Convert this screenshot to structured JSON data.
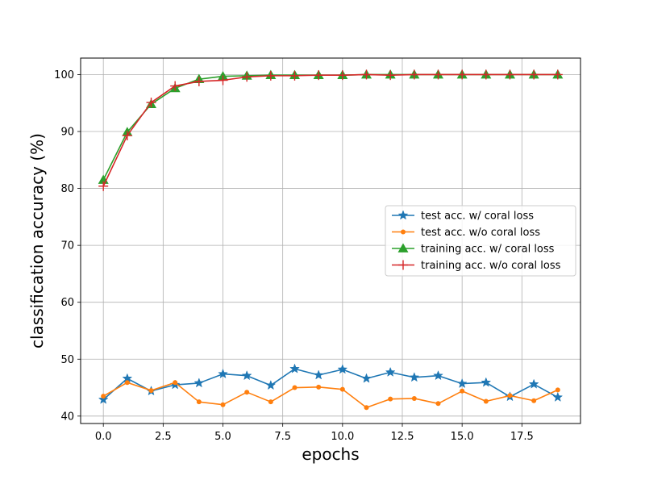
{
  "chart_data": {
    "type": "line",
    "xlabel": "epochs",
    "ylabel": "classification accuracy (%)",
    "xlim": [
      -0.95,
      19.95
    ],
    "ylim": [
      38.7,
      102.9
    ],
    "xticks": [
      0.0,
      2.5,
      5.0,
      7.5,
      10.0,
      12.5,
      15.0,
      17.5
    ],
    "xtick_labels": [
      "0.0",
      "2.5",
      "5.0",
      "7.5",
      "10.0",
      "12.5",
      "15.0",
      "17.5"
    ],
    "yticks": [
      40,
      50,
      60,
      70,
      80,
      90,
      100
    ],
    "ytick_labels": [
      "40",
      "50",
      "60",
      "70",
      "80",
      "90",
      "100"
    ],
    "grid": true,
    "legend_position": "center-right",
    "x": [
      0,
      1,
      2,
      3,
      4,
      5,
      6,
      7,
      8,
      9,
      10,
      11,
      12,
      13,
      14,
      15,
      16,
      17,
      18,
      19
    ],
    "series": [
      {
        "name": "test acc. w/ coral loss",
        "color": "#1f77b4",
        "marker": "star",
        "values": [
          42.9,
          46.6,
          44.4,
          45.5,
          45.8,
          47.4,
          47.1,
          45.4,
          48.3,
          47.2,
          48.2,
          46.6,
          47.7,
          46.8,
          47.1,
          45.7,
          45.9,
          43.4,
          45.6,
          43.3
        ]
      },
      {
        "name": "test acc. w/o coral loss",
        "color": "#ff7f0e",
        "marker": "circle",
        "values": [
          43.5,
          45.9,
          44.5,
          45.9,
          42.5,
          42.0,
          44.2,
          42.5,
          45.0,
          45.1,
          44.7,
          41.5,
          43.0,
          43.1,
          42.2,
          44.4,
          42.6,
          43.6,
          42.7,
          44.6
        ]
      },
      {
        "name": "training acc. w/ coral loss",
        "color": "#2ca02c",
        "marker": "triangle",
        "values": [
          81.5,
          89.9,
          94.8,
          97.6,
          99.2,
          99.7,
          99.8,
          99.9,
          99.9,
          99.9,
          99.9,
          100.0,
          100.0,
          100.0,
          100.0,
          100.0,
          100.0,
          100.0,
          100.0,
          100.0
        ]
      },
      {
        "name": "training acc. w/o coral loss",
        "color": "#d62728",
        "marker": "plus",
        "values": [
          80.4,
          89.3,
          95.1,
          98.0,
          98.8,
          99.0,
          99.6,
          99.8,
          99.8,
          99.9,
          99.9,
          100.0,
          99.9,
          100.0,
          100.0,
          100.0,
          100.0,
          100.0,
          100.0,
          100.0
        ]
      }
    ]
  }
}
